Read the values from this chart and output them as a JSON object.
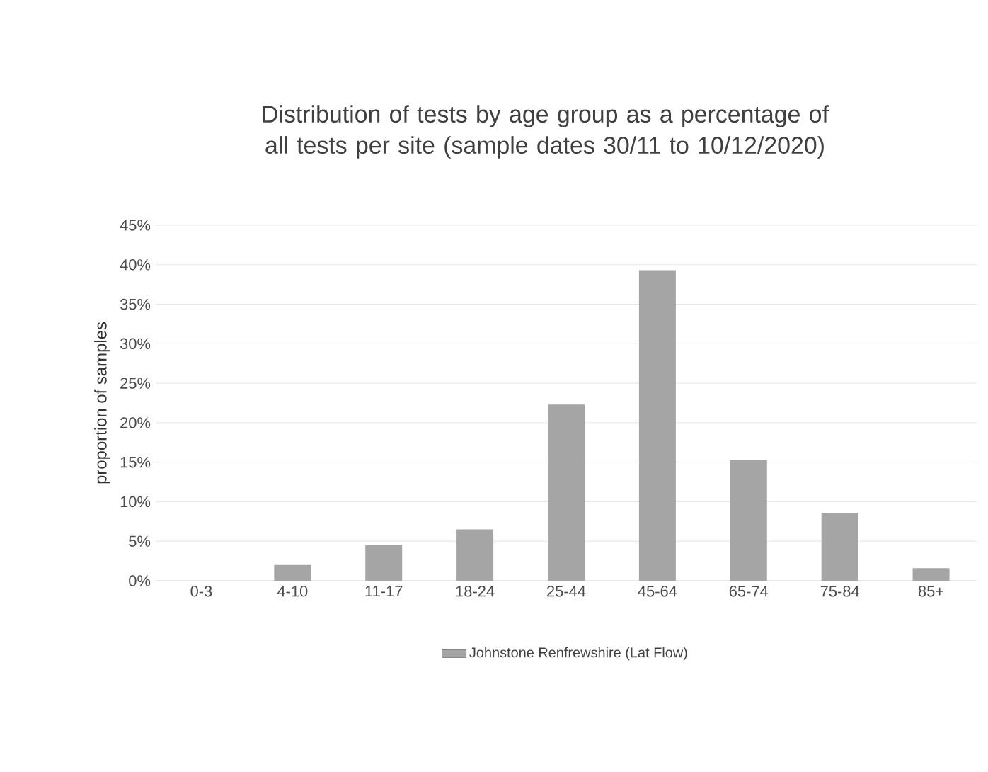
{
  "chart_data": {
    "type": "bar",
    "title": "Distribution of tests by age group as a percentage of all tests per site (sample dates 30/11 to 10/12/2020)",
    "ylabel": "proportion of samples",
    "categories": [
      "0-3",
      "4-10",
      "11-17",
      "18-24",
      "25-44",
      "45-64",
      "65-74",
      "75-84",
      "85+"
    ],
    "series": [
      {
        "name": "Johnstone Renfrewshire (Lat Flow)",
        "color": "#a5a5a5",
        "values": [
          0,
          2.0,
          4.5,
          6.5,
          22.3,
          39.3,
          15.3,
          8.6,
          1.6
        ]
      }
    ],
    "ylim": [
      0,
      45
    ],
    "yticks": [
      {
        "value": 0,
        "label": "0%"
      },
      {
        "value": 5,
        "label": "5%"
      },
      {
        "value": 10,
        "label": "10%"
      },
      {
        "value": 15,
        "label": "15%"
      },
      {
        "value": 20,
        "label": "20%"
      },
      {
        "value": 25,
        "label": "25%"
      },
      {
        "value": 30,
        "label": "30%"
      },
      {
        "value": 35,
        "label": "35%"
      },
      {
        "value": 40,
        "label": "40%"
      },
      {
        "value": 45,
        "label": "45%"
      }
    ],
    "grid": "y",
    "legend": "bottom"
  }
}
